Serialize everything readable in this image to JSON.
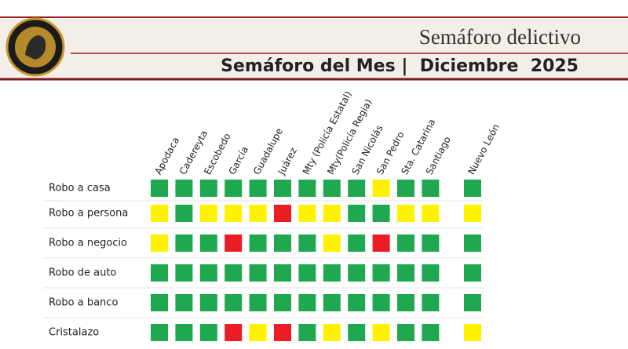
{
  "header": {
    "title": "Semáforo delictivo",
    "subtitle": "Semáforo del Mes |  Diciembre  2025"
  },
  "colors": {
    "green": "#1fa84f",
    "yellow": "#fff200",
    "red": "#ec1c24"
  },
  "table": {
    "columns": [
      "Apodaca",
      "Cadereyta",
      "Escobedo",
      "García",
      "Guadalupe",
      "Juárez",
      "Mty (Policía Estatal)",
      "Mty(Policía Regia)",
      "San Nicolás",
      "San Pedro",
      "Sta. Catarina",
      "Santiago",
      "Nuevo León"
    ],
    "rows": [
      {
        "label": "Robo a casa",
        "cells": [
          "green",
          "green",
          "green",
          "green",
          "green",
          "green",
          "green",
          "green",
          "green",
          "yellow",
          "green",
          "green",
          "green"
        ]
      },
      {
        "label": "Robo a persona",
        "cells": [
          "yellow",
          "green",
          "yellow",
          "yellow",
          "yellow",
          "red",
          "yellow",
          "yellow",
          "green",
          "green",
          "yellow",
          "yellow",
          "yellow"
        ]
      },
      {
        "label": "Robo a negocio",
        "cells": [
          "yellow",
          "green",
          "green",
          "red",
          "green",
          "green",
          "green",
          "yellow",
          "green",
          "red",
          "green",
          "green",
          "green"
        ]
      },
      {
        "label": "Robo de auto",
        "cells": [
          "green",
          "green",
          "green",
          "green",
          "green",
          "green",
          "green",
          "green",
          "green",
          "green",
          "green",
          "green",
          "green"
        ]
      },
      {
        "label": "Robo a banco",
        "cells": [
          "green",
          "green",
          "green",
          "green",
          "green",
          "green",
          "green",
          "green",
          "green",
          "green",
          "green",
          "green",
          "green"
        ]
      },
      {
        "label": "Cristalazo",
        "cells": [
          "green",
          "green",
          "green",
          "red",
          "yellow",
          "red",
          "green",
          "yellow",
          "green",
          "yellow",
          "green",
          "green",
          "yellow"
        ]
      }
    ]
  }
}
